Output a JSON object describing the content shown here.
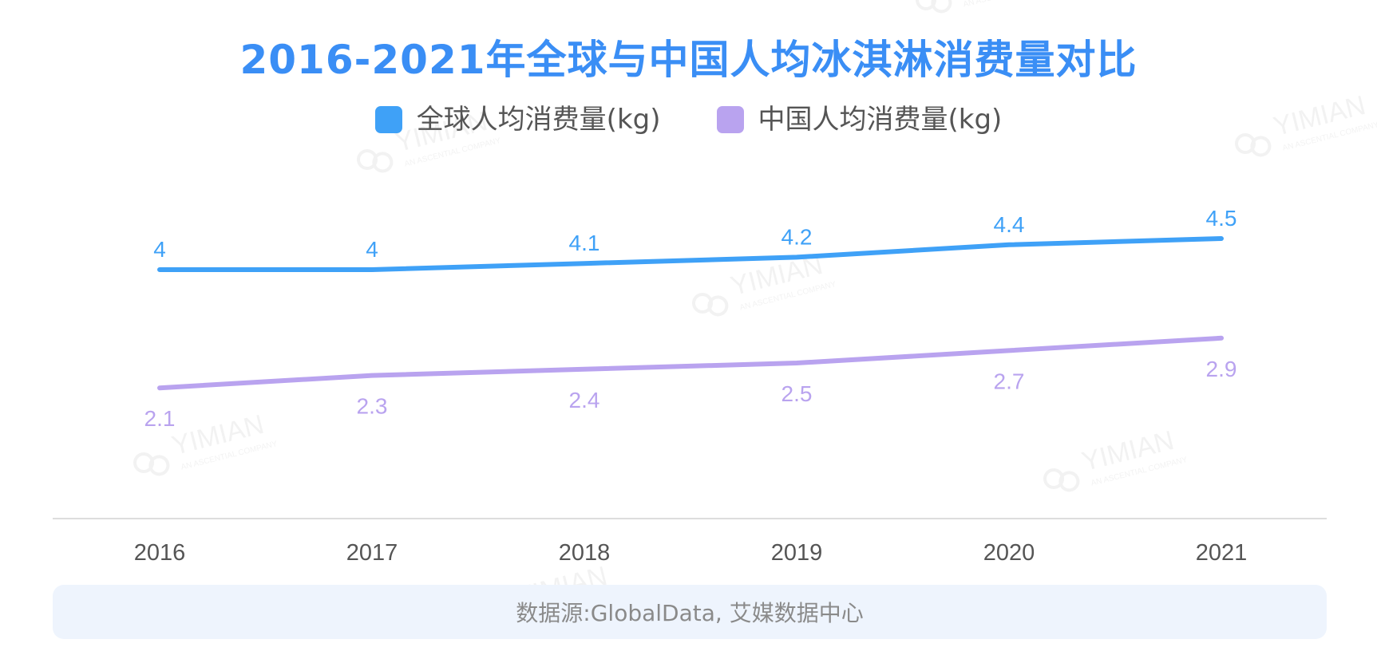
{
  "title": "2016-2021年全球与中国人均冰淇淋消费量对比",
  "source": "数据源:GlobalData, 艾媒数据中心",
  "watermark": {
    "brand": "YIMIAN",
    "tagline": "AN ASCENTIAL COMPANY"
  },
  "colors": {
    "title": "#3a8ef5",
    "global": "#3fa1f7",
    "china": "#b9a3ef",
    "axis": "#dddddd",
    "tick": "#555555",
    "source_bg": "#eef4fd"
  },
  "chart_data": {
    "type": "line",
    "title": "2016-2021年全球与中国人均冰淇淋消费量对比",
    "categories": [
      "2016",
      "2017",
      "2018",
      "2019",
      "2020",
      "2021"
    ],
    "series": [
      {
        "name": "全球人均消费量(kg)",
        "color": "#3fa1f7",
        "values": [
          4,
          4,
          4.1,
          4.2,
          4.4,
          4.5
        ],
        "label_position": "above"
      },
      {
        "name": "中国人均消费量(kg)",
        "color": "#b9a3ef",
        "values": [
          2.1,
          2.3,
          2.4,
          2.5,
          2.7,
          2.9
        ],
        "label_position": "below"
      }
    ],
    "ylim": [
      0,
      5.5
    ],
    "grid": false,
    "legend_position": "top-center",
    "xlabel": "",
    "ylabel": ""
  }
}
